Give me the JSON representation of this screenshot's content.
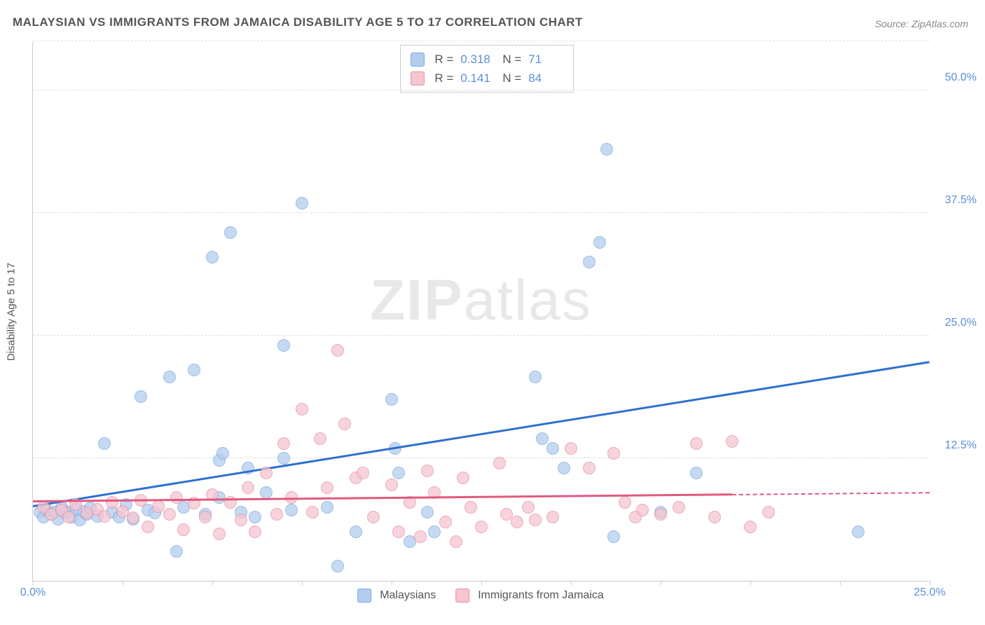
{
  "title": "MALAYSIAN VS IMMIGRANTS FROM JAMAICA DISABILITY AGE 5 TO 17 CORRELATION CHART",
  "source": "Source: ZipAtlas.com",
  "watermark_zip": "ZIP",
  "watermark_atlas": "atlas",
  "y_axis_label": "Disability Age 5 to 17",
  "chart": {
    "type": "scatter",
    "xlim": [
      0,
      25
    ],
    "ylim": [
      0,
      55
    ],
    "x_ticks": [
      0,
      2.5,
      5,
      7.5,
      10,
      12.5,
      15,
      17.5,
      20,
      22.5,
      25
    ],
    "x_tick_labels": {
      "0": "0.0%",
      "25": "25.0%"
    },
    "y_gridlines": [
      12.5,
      25,
      37.5,
      50,
      55
    ],
    "y_tick_labels": {
      "12.5": "12.5%",
      "25": "25.0%",
      "37.5": "37.5%",
      "50": "50.0%"
    },
    "background_color": "#ffffff",
    "grid_color": "#dddddd",
    "axis_color": "#cccccc",
    "label_color": "#5b8fd6",
    "series": [
      {
        "name": "Malaysians",
        "color_fill": "#b3cdef",
        "color_stroke": "#7ba8e0",
        "trend_color": "#2e6fd1",
        "r_value": "0.318",
        "n_value": "71",
        "trend": {
          "x1": 0,
          "y1": 7.5,
          "x2": 25,
          "y2": 22.2
        },
        "points": [
          [
            0.2,
            7.0
          ],
          [
            0.3,
            6.5
          ],
          [
            0.4,
            7.2
          ],
          [
            0.5,
            6.8
          ],
          [
            0.6,
            7.0
          ],
          [
            0.7,
            6.3
          ],
          [
            0.8,
            7.5
          ],
          [
            0.9,
            6.9
          ],
          [
            1.0,
            7.0
          ],
          [
            1.1,
            6.5
          ],
          [
            1.2,
            7.3
          ],
          [
            1.3,
            6.2
          ],
          [
            1.4,
            7.1
          ],
          [
            1.5,
            6.8
          ],
          [
            1.6,
            7.4
          ],
          [
            1.8,
            6.6
          ],
          [
            2.0,
            14.0
          ],
          [
            2.2,
            7.0
          ],
          [
            2.4,
            6.5
          ],
          [
            2.6,
            7.8
          ],
          [
            2.8,
            6.3
          ],
          [
            3.0,
            18.8
          ],
          [
            3.2,
            7.2
          ],
          [
            3.4,
            6.9
          ],
          [
            3.8,
            20.8
          ],
          [
            4.0,
            3.0
          ],
          [
            4.2,
            7.5
          ],
          [
            4.5,
            21.5
          ],
          [
            4.8,
            6.8
          ],
          [
            5.0,
            33.0
          ],
          [
            5.2,
            8.5
          ],
          [
            5.2,
            12.3
          ],
          [
            5.3,
            13.0
          ],
          [
            5.5,
            35.5
          ],
          [
            5.8,
            7.0
          ],
          [
            6.0,
            11.5
          ],
          [
            6.2,
            6.5
          ],
          [
            6.5,
            9.0
          ],
          [
            7.0,
            12.5
          ],
          [
            7.0,
            24.0
          ],
          [
            7.2,
            7.2
          ],
          [
            7.5,
            38.5
          ],
          [
            8.2,
            7.5
          ],
          [
            8.5,
            1.5
          ],
          [
            9.0,
            5.0
          ],
          [
            10.0,
            18.5
          ],
          [
            10.1,
            13.5
          ],
          [
            10.2,
            11.0
          ],
          [
            10.5,
            4.0
          ],
          [
            11.0,
            7.0
          ],
          [
            11.2,
            5.0
          ],
          [
            14.0,
            20.8
          ],
          [
            14.2,
            14.5
          ],
          [
            14.5,
            13.5
          ],
          [
            14.8,
            11.5
          ],
          [
            15.5,
            32.5
          ],
          [
            15.8,
            34.5
          ],
          [
            16.0,
            44.0
          ],
          [
            16.2,
            4.5
          ],
          [
            17.5,
            7.0
          ],
          [
            18.5,
            11.0
          ],
          [
            23.0,
            5.0
          ]
        ]
      },
      {
        "name": "Immigrants from Jamaica",
        "color_fill": "#f5c5d0",
        "color_stroke": "#e88fa5",
        "trend_color": "#e05a7d",
        "r_value": "0.141",
        "n_value": "84",
        "trend": {
          "x1": 0,
          "y1": 8.0,
          "x2": 19.5,
          "y2": 8.7
        },
        "trend_ext": {
          "x1": 19.5,
          "y1": 8.7,
          "x2": 25,
          "y2": 8.9
        },
        "points": [
          [
            0.3,
            7.5
          ],
          [
            0.5,
            6.8
          ],
          [
            0.8,
            7.2
          ],
          [
            1.0,
            6.5
          ],
          [
            1.2,
            7.8
          ],
          [
            1.5,
            6.9
          ],
          [
            1.8,
            7.3
          ],
          [
            2.0,
            6.6
          ],
          [
            2.2,
            8.0
          ],
          [
            2.5,
            7.1
          ],
          [
            2.8,
            6.4
          ],
          [
            3.0,
            8.2
          ],
          [
            3.2,
            5.5
          ],
          [
            3.5,
            7.6
          ],
          [
            3.8,
            6.8
          ],
          [
            4.0,
            8.5
          ],
          [
            4.2,
            5.2
          ],
          [
            4.5,
            7.9
          ],
          [
            4.8,
            6.5
          ],
          [
            5.0,
            8.8
          ],
          [
            5.2,
            4.8
          ],
          [
            5.5,
            8.0
          ],
          [
            5.8,
            6.2
          ],
          [
            6.0,
            9.5
          ],
          [
            6.2,
            5.0
          ],
          [
            6.5,
            11.0
          ],
          [
            6.8,
            6.8
          ],
          [
            7.0,
            14.0
          ],
          [
            7.2,
            8.5
          ],
          [
            7.5,
            17.5
          ],
          [
            7.8,
            7.0
          ],
          [
            8.0,
            14.5
          ],
          [
            8.2,
            9.5
          ],
          [
            8.5,
            23.5
          ],
          [
            8.7,
            16.0
          ],
          [
            9.0,
            10.5
          ],
          [
            9.2,
            11.0
          ],
          [
            9.5,
            6.5
          ],
          [
            10.0,
            9.8
          ],
          [
            10.2,
            5.0
          ],
          [
            10.5,
            8.0
          ],
          [
            10.8,
            4.5
          ],
          [
            11.0,
            11.2
          ],
          [
            11.2,
            9.0
          ],
          [
            11.5,
            6.0
          ],
          [
            11.8,
            4.0
          ],
          [
            12.0,
            10.5
          ],
          [
            12.2,
            7.5
          ],
          [
            12.5,
            5.5
          ],
          [
            13.0,
            12.0
          ],
          [
            13.2,
            6.8
          ],
          [
            13.5,
            6.0
          ],
          [
            13.8,
            7.5
          ],
          [
            14.0,
            6.2
          ],
          [
            14.5,
            6.5
          ],
          [
            15.0,
            13.5
          ],
          [
            15.5,
            11.5
          ],
          [
            16.2,
            13.0
          ],
          [
            16.5,
            8.0
          ],
          [
            16.8,
            6.5
          ],
          [
            17.0,
            7.2
          ],
          [
            17.5,
            6.8
          ],
          [
            18.0,
            7.5
          ],
          [
            18.5,
            14.0
          ],
          [
            19.0,
            6.5
          ],
          [
            19.5,
            14.2
          ],
          [
            20.0,
            5.5
          ],
          [
            20.5,
            7.0
          ]
        ]
      }
    ]
  },
  "stats_labels": {
    "r": "R =",
    "n": "N ="
  },
  "legend_labels": {
    "s1": "Malaysians",
    "s2": "Immigrants from Jamaica"
  }
}
